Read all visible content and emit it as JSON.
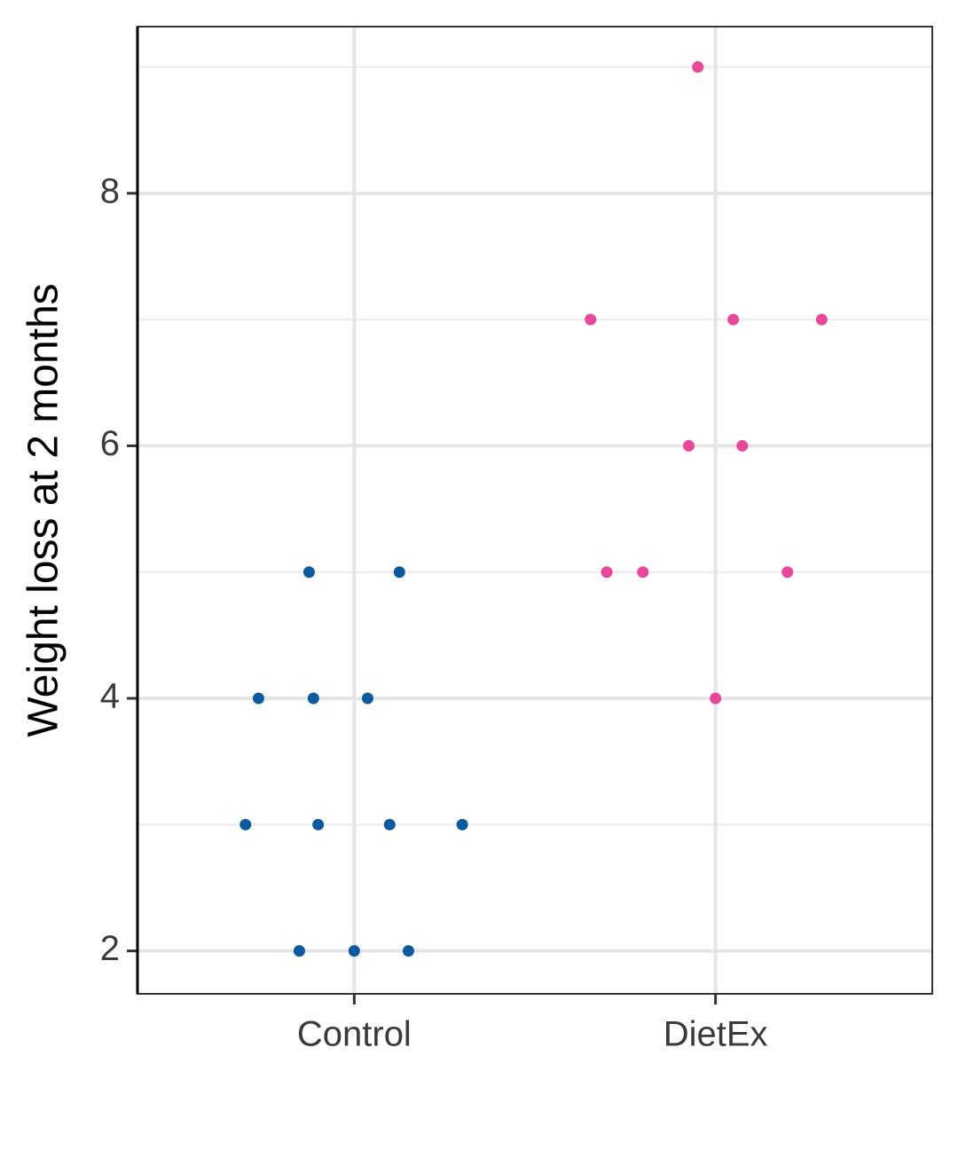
{
  "chart_data": {
    "type": "scatter",
    "y_label": "Weight loss at 2 months",
    "xlim": [
      0.4,
      2.6
    ],
    "xticks": [
      {
        "value": 1,
        "label": "Control"
      },
      {
        "value": 2,
        "label": "DietEx"
      }
    ],
    "ylim": [
      1.66,
      9.32
    ],
    "yticks": [
      2,
      4,
      6,
      8
    ],
    "y_minor_grid": [
      3,
      5,
      7,
      9
    ],
    "grid": true,
    "series": [
      {
        "color": "#0b5aa0",
        "x": [
          0.875,
          1.125,
          0.735,
          0.887,
          1.037,
          0.699,
          0.9,
          1.098,
          1.299,
          0.848,
          1.0,
          1.15
        ],
        "values": [
          5,
          5,
          4,
          4,
          4,
          3,
          3,
          3,
          3,
          2,
          2,
          2
        ]
      },
      {
        "color": "#e8479a",
        "x": [
          1.951,
          1.654,
          2.049,
          2.294,
          1.926,
          2.074,
          1.699,
          1.799,
          2.199,
          2.0
        ],
        "values": [
          9,
          7,
          7,
          7,
          6,
          6,
          5,
          5,
          5,
          4
        ]
      }
    ]
  }
}
